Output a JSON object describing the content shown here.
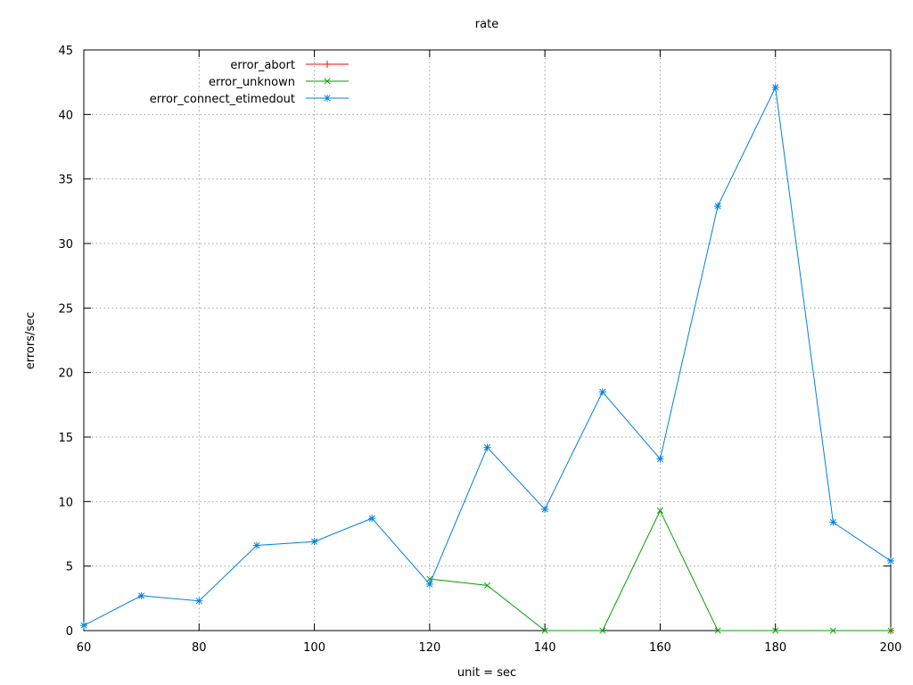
{
  "chart_data": {
    "type": "line",
    "title": "rate",
    "xlabel": "unit = sec",
    "ylabel": "errors/sec",
    "xlim": [
      60,
      200
    ],
    "ylim": [
      0,
      45
    ],
    "x_ticks": [
      60,
      80,
      100,
      120,
      140,
      160,
      180,
      200
    ],
    "y_ticks": [
      0,
      5,
      10,
      15,
      20,
      25,
      30,
      35,
      40,
      45
    ],
    "grid": true,
    "legend_position": "top-left",
    "series": [
      {
        "name": "error_abort",
        "color": "#ff0000",
        "marker": "plus",
        "points": [
          [
            200,
            0
          ]
        ]
      },
      {
        "name": "error_unknown",
        "color": "#00a000",
        "marker": "cross",
        "points": [
          [
            120,
            4
          ],
          [
            130,
            3.5
          ],
          [
            140,
            0
          ],
          [
            150,
            0
          ],
          [
            160,
            9.3
          ],
          [
            170,
            0
          ],
          [
            180,
            0
          ],
          [
            190,
            0
          ],
          [
            200,
            0
          ]
        ]
      },
      {
        "name": "error_connect_etimedout",
        "color": "#0080e0",
        "marker": "star",
        "points": [
          [
            60,
            0.4
          ],
          [
            70,
            2.7
          ],
          [
            80,
            2.3
          ],
          [
            90,
            6.6
          ],
          [
            100,
            6.9
          ],
          [
            110,
            8.7
          ],
          [
            120,
            3.6
          ],
          [
            130,
            14.2
          ],
          [
            140,
            9.4
          ],
          [
            150,
            18.5
          ],
          [
            160,
            13.3
          ],
          [
            170,
            32.9
          ],
          [
            180,
            42.1
          ],
          [
            190,
            8.4
          ],
          [
            200,
            5.4
          ]
        ]
      }
    ]
  }
}
